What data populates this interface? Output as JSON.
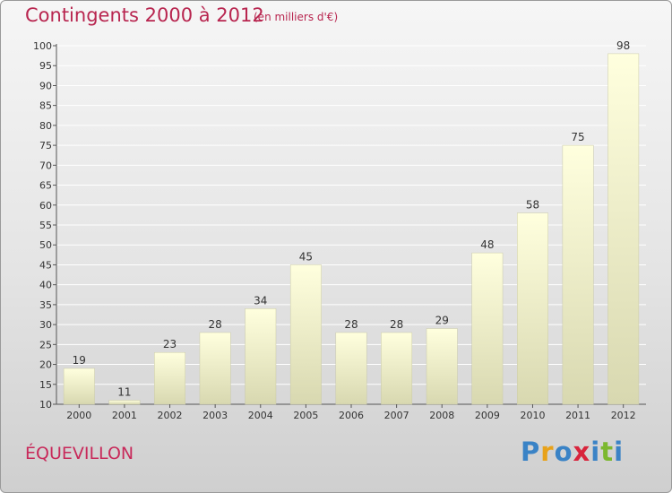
{
  "header": {
    "title": "Contingents 2000 à 2012",
    "subtitle": "(en milliers d'€)"
  },
  "footer": {
    "commune": "ÉQUEVILLON",
    "logo": "Proxiti"
  },
  "colors": {
    "title": "#b8254f",
    "bar_top": "#ffffde",
    "bar_bottom": "#d8d8b0",
    "logo_letters": [
      "#3a83c6",
      "#e8a21a",
      "#3a83c6",
      "#d8243c",
      "#3a83c6",
      "#7cb82f",
      "#3a83c6"
    ]
  },
  "chart_data": {
    "type": "bar",
    "categories": [
      "2000",
      "2001",
      "2002",
      "2003",
      "2004",
      "2005",
      "2006",
      "2007",
      "2008",
      "2009",
      "2010",
      "2011",
      "2012"
    ],
    "values": [
      19,
      11,
      23,
      28,
      34,
      45,
      28,
      28,
      29,
      48,
      58,
      75,
      98
    ],
    "ylim": [
      10,
      100
    ],
    "yticks": [
      10,
      15,
      20,
      25,
      30,
      35,
      40,
      45,
      50,
      55,
      60,
      65,
      70,
      75,
      80,
      85,
      90,
      95,
      100
    ],
    "grid": true,
    "value_labels": true
  }
}
